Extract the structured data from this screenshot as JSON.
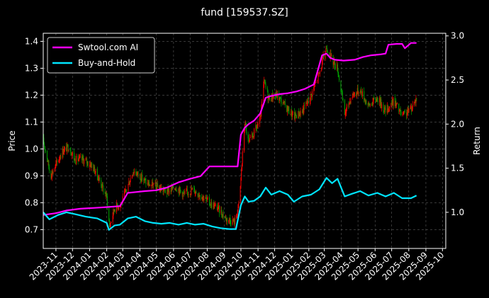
{
  "chart_data": {
    "type": "line",
    "title": "fund [159537.SZ]",
    "ylabel_left": "Price",
    "ylabel_right": "Return",
    "xlabel": "",
    "grid": true,
    "legend_placement": "top-left",
    "colors": {
      "background": "#000000",
      "axes": "#ffffff",
      "grid": "#808080",
      "candle_up": "#ff0000",
      "candle_down": "#00a000",
      "strategy": "#ff00ff",
      "buyhold": "#00e5ff"
    },
    "x_ticks": [
      "2023-11",
      "2023-12",
      "2024-01",
      "2024-02",
      "2024-03",
      "2024-04",
      "2024-05",
      "2024-06",
      "2024-07",
      "2024-08",
      "2024-09",
      "2024-10",
      "2024-11",
      "2024-12",
      "2025-01",
      "2025-02",
      "2025-03",
      "2025-04",
      "2025-05",
      "2025-06",
      "2025-07",
      "2025-08",
      "2025-09",
      "2025-10"
    ],
    "x_range": [
      "2023-10-09",
      "2025-10-07"
    ],
    "ylim_left": [
      0.63,
      1.43
    ],
    "ylim_right": [
      0.59,
      3.03
    ],
    "yticks_left": [
      "0.7",
      "0.8",
      "0.9",
      "1.0",
      "1.1",
      "1.2",
      "1.3",
      "1.4"
    ],
    "yticks_right": [
      "1.0",
      "1.5",
      "2.0",
      "2.5",
      "3.0"
    ],
    "series": [
      {
        "name": "Swtool.com AI",
        "axis": "right",
        "points": [
          [
            "2023-10-09",
            0.97
          ],
          [
            "2023-11-01",
            0.99
          ],
          [
            "2023-11-20",
            1.02
          ],
          [
            "2023-12-15",
            1.04
          ],
          [
            "2024-01-10",
            1.05
          ],
          [
            "2024-02-05",
            1.06
          ],
          [
            "2024-02-25",
            1.07
          ],
          [
            "2024-03-10",
            1.22
          ],
          [
            "2024-03-25",
            1.23
          ],
          [
            "2024-04-10",
            1.24
          ],
          [
            "2024-05-01",
            1.25
          ],
          [
            "2024-05-20",
            1.28
          ],
          [
            "2024-06-10",
            1.34
          ],
          [
            "2024-07-01",
            1.38
          ],
          [
            "2024-07-20",
            1.41
          ],
          [
            "2024-08-05",
            1.52
          ],
          [
            "2024-08-25",
            1.52
          ],
          [
            "2024-09-15",
            1.52
          ],
          [
            "2024-09-25",
            1.52
          ],
          [
            "2024-10-01",
            1.88
          ],
          [
            "2024-10-08",
            1.96
          ],
          [
            "2024-10-15",
            2.0
          ],
          [
            "2024-10-25",
            2.04
          ],
          [
            "2024-11-05",
            2.12
          ],
          [
            "2024-11-15",
            2.3
          ],
          [
            "2024-11-25",
            2.32
          ],
          [
            "2024-12-10",
            2.34
          ],
          [
            "2024-12-25",
            2.35
          ],
          [
            "2025-01-10",
            2.37
          ],
          [
            "2025-01-25",
            2.4
          ],
          [
            "2025-02-10",
            2.45
          ],
          [
            "2025-02-25",
            2.78
          ],
          [
            "2025-03-05",
            2.8
          ],
          [
            "2025-03-12",
            2.75
          ],
          [
            "2025-03-20",
            2.73
          ],
          [
            "2025-04-05",
            2.72
          ],
          [
            "2025-04-25",
            2.73
          ],
          [
            "2025-05-10",
            2.76
          ],
          [
            "2025-05-25",
            2.78
          ],
          [
            "2025-06-10",
            2.79
          ],
          [
            "2025-06-20",
            2.8
          ],
          [
            "2025-06-25",
            2.9
          ],
          [
            "2025-07-10",
            2.91
          ],
          [
            "2025-07-20",
            2.91
          ],
          [
            "2025-07-25",
            2.86
          ],
          [
            "2025-08-05",
            2.92
          ],
          [
            "2025-08-15",
            2.92
          ]
        ]
      },
      {
        "name": "Buy-and-Hold",
        "axis": "right",
        "points": [
          [
            "2023-10-09",
            1.0
          ],
          [
            "2023-10-20",
            0.92
          ],
          [
            "2023-11-05",
            0.97
          ],
          [
            "2023-11-20",
            1.0
          ],
          [
            "2023-12-05",
            0.98
          ],
          [
            "2023-12-25",
            0.95
          ],
          [
            "2024-01-15",
            0.93
          ],
          [
            "2024-02-01",
            0.88
          ],
          [
            "2024-02-05",
            0.8
          ],
          [
            "2024-02-15",
            0.85
          ],
          [
            "2024-02-25",
            0.86
          ],
          [
            "2024-03-10",
            0.93
          ],
          [
            "2024-03-25",
            0.95
          ],
          [
            "2024-04-10",
            0.9
          ],
          [
            "2024-04-25",
            0.88
          ],
          [
            "2024-05-10",
            0.87
          ],
          [
            "2024-05-25",
            0.88
          ],
          [
            "2024-06-10",
            0.86
          ],
          [
            "2024-06-25",
            0.88
          ],
          [
            "2024-07-10",
            0.86
          ],
          [
            "2024-07-25",
            0.87
          ],
          [
            "2024-08-10",
            0.84
          ],
          [
            "2024-08-25",
            0.82
          ],
          [
            "2024-09-10",
            0.81
          ],
          [
            "2024-09-22",
            0.81
          ],
          [
            "2024-10-01",
            1.08
          ],
          [
            "2024-10-08",
            1.18
          ],
          [
            "2024-10-15",
            1.12
          ],
          [
            "2024-10-25",
            1.13
          ],
          [
            "2024-11-05",
            1.18
          ],
          [
            "2024-11-15",
            1.28
          ],
          [
            "2024-11-25",
            1.2
          ],
          [
            "2024-12-10",
            1.24
          ],
          [
            "2024-12-25",
            1.2
          ],
          [
            "2025-01-05",
            1.12
          ],
          [
            "2025-01-20",
            1.18
          ],
          [
            "2025-02-05",
            1.2
          ],
          [
            "2025-02-20",
            1.26
          ],
          [
            "2025-03-05",
            1.39
          ],
          [
            "2025-03-15",
            1.33
          ],
          [
            "2025-03-25",
            1.38
          ],
          [
            "2025-04-07",
            1.18
          ],
          [
            "2025-04-20",
            1.21
          ],
          [
            "2025-05-05",
            1.24
          ],
          [
            "2025-05-20",
            1.19
          ],
          [
            "2025-06-05",
            1.22
          ],
          [
            "2025-06-20",
            1.18
          ],
          [
            "2025-07-05",
            1.22
          ],
          [
            "2025-07-20",
            1.16
          ],
          [
            "2025-08-05",
            1.16
          ],
          [
            "2025-08-15",
            1.19
          ]
        ]
      }
    ],
    "price_path": [
      [
        "2023-10-09",
        1.03
      ],
      [
        "2023-10-15",
        0.98
      ],
      [
        "2023-10-22",
        0.9
      ],
      [
        "2023-11-01",
        0.94
      ],
      [
        "2023-11-12",
        0.99
      ],
      [
        "2023-11-25",
        1.01
      ],
      [
        "2023-12-05",
        0.96
      ],
      [
        "2023-12-20",
        0.96
      ],
      [
        "2024-01-05",
        0.94
      ],
      [
        "2024-01-20",
        0.88
      ],
      [
        "2024-02-01",
        0.82
      ],
      [
        "2024-02-06",
        0.71
      ],
      [
        "2024-02-15",
        0.78
      ],
      [
        "2024-02-28",
        0.8
      ],
      [
        "2024-03-08",
        0.85
      ],
      [
        "2024-03-20",
        0.92
      ],
      [
        "2024-04-01",
        0.9
      ],
      [
        "2024-04-15",
        0.87
      ],
      [
        "2024-05-01",
        0.86
      ],
      [
        "2024-05-20",
        0.84
      ],
      [
        "2024-06-05",
        0.86
      ],
      [
        "2024-06-20",
        0.83
      ],
      [
        "2024-07-05",
        0.85
      ],
      [
        "2024-07-20",
        0.83
      ],
      [
        "2024-08-05",
        0.8
      ],
      [
        "2024-08-20",
        0.78
      ],
      [
        "2024-09-05",
        0.74
      ],
      [
        "2024-09-20",
        0.73
      ],
      [
        "2024-09-28",
        0.8
      ],
      [
        "2024-10-08",
        1.1
      ],
      [
        "2024-10-15",
        1.02
      ],
      [
        "2024-10-25",
        1.06
      ],
      [
        "2024-11-05",
        1.11
      ],
      [
        "2024-11-12",
        1.25
      ],
      [
        "2024-11-20",
        1.19
      ],
      [
        "2024-12-05",
        1.2
      ],
      [
        "2024-12-20",
        1.16
      ],
      [
        "2025-01-05",
        1.12
      ],
      [
        "2025-01-20",
        1.14
      ],
      [
        "2025-02-05",
        1.2
      ],
      [
        "2025-02-20",
        1.28
      ],
      [
        "2025-03-05",
        1.38
      ],
      [
        "2025-03-15",
        1.33
      ],
      [
        "2025-03-25",
        1.3
      ],
      [
        "2025-04-07",
        1.13
      ],
      [
        "2025-04-20",
        1.2
      ],
      [
        "2025-05-05",
        1.22
      ],
      [
        "2025-05-20",
        1.16
      ],
      [
        "2025-06-05",
        1.19
      ],
      [
        "2025-06-20",
        1.14
      ],
      [
        "2025-07-05",
        1.18
      ],
      [
        "2025-07-20",
        1.12
      ],
      [
        "2025-08-05",
        1.15
      ],
      [
        "2025-08-15",
        1.19
      ]
    ]
  }
}
